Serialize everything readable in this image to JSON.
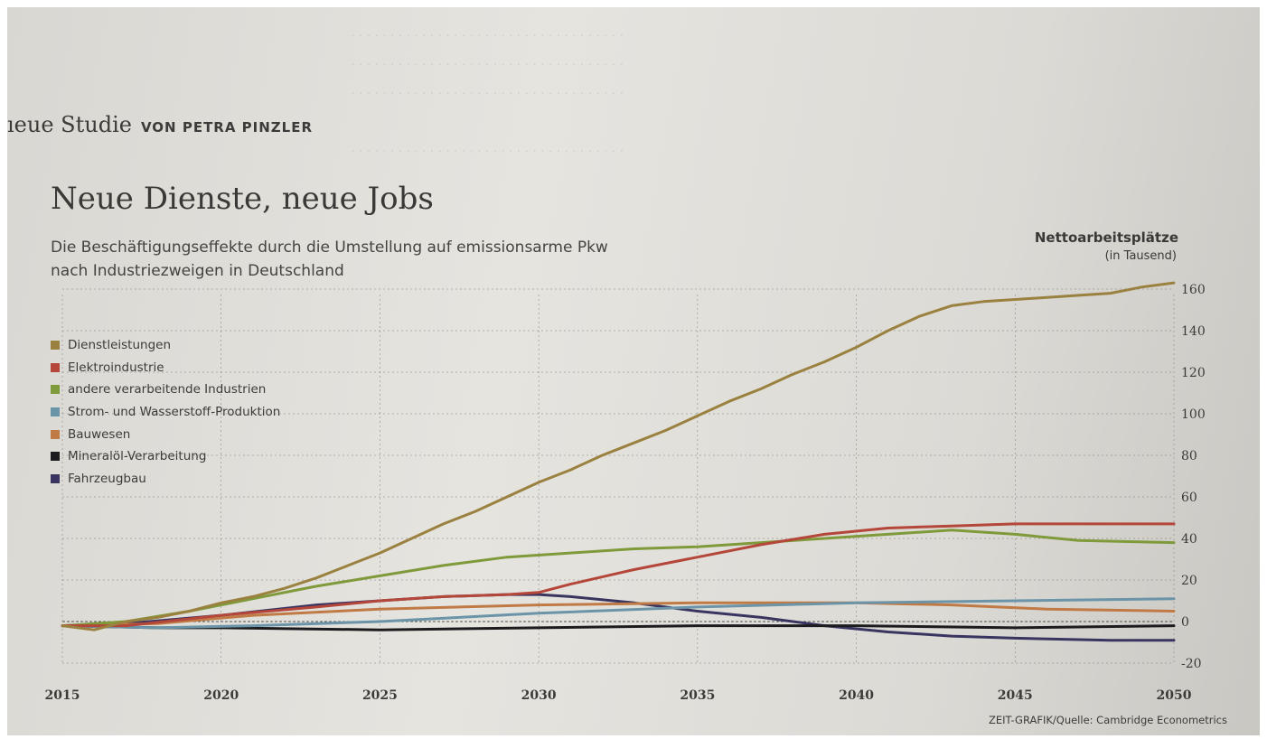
{
  "kicker": {
    "serif": "ıeue Studie",
    "author": "VON PETRA PINZLER"
  },
  "title": "Neue Dienste, neue Jobs",
  "subtitle": [
    "Die Beschäftigungseffekte durch die Umstellung auf emissionsarme Pkw",
    "nach Industriezweigen in Deutschland"
  ],
  "unit": {
    "title": "Nettoarbeitsplätze",
    "sub": "(in Tausend)"
  },
  "source": "ZEIT-GRAFIK/Quelle: Cambridge Econometrics",
  "colors": {
    "paper": "#e2e0db",
    "grid": "#7a7a78",
    "text": "#3d3b39"
  },
  "chart_data": {
    "type": "line",
    "title": "Neue Dienste, neue Jobs",
    "xlabel": "",
    "ylabel": "Nettoarbeitsplätze (in Tausend)",
    "xlim": [
      2015,
      2050
    ],
    "ylim": [
      -20,
      160
    ],
    "x_ticks": [
      2015,
      2020,
      2025,
      2030,
      2035,
      2040,
      2045,
      2050
    ],
    "y_ticks": [
      -20,
      0,
      20,
      40,
      60,
      80,
      100,
      120,
      140,
      160
    ],
    "grid": true,
    "legend": "left",
    "series": [
      {
        "name": "Dienstleistungen",
        "color": "#9a8140",
        "x": [
          2015,
          2016,
          2017,
          2018,
          2019,
          2020,
          2021,
          2022,
          2023,
          2024,
          2025,
          2026,
          2027,
          2028,
          2029,
          2030,
          2031,
          2032,
          2033,
          2034,
          2035,
          2036,
          2037,
          2038,
          2039,
          2040,
          2041,
          2042,
          2043,
          2044,
          2045,
          2046,
          2047,
          2048,
          2049,
          2050
        ],
        "y": [
          -2,
          -4,
          0,
          2,
          5,
          9,
          12,
          16,
          21,
          27,
          33,
          40,
          47,
          53,
          60,
          67,
          73,
          80,
          86,
          92,
          99,
          106,
          112,
          119,
          125,
          132,
          140,
          147,
          152,
          154,
          155,
          156,
          157,
          158,
          161,
          163
        ]
      },
      {
        "name": "Elektroindustrie",
        "color": "#b4463a",
        "x": [
          2015,
          2017,
          2020,
          2023,
          2025,
          2027,
          2029,
          2030,
          2031,
          2033,
          2035,
          2037,
          2039,
          2041,
          2043,
          2045,
          2047,
          2050
        ],
        "y": [
          -2,
          -2,
          3,
          7,
          10,
          12,
          13,
          14,
          18,
          25,
          31,
          37,
          42,
          45,
          46,
          47,
          47,
          47
        ]
      },
      {
        "name": "andere verarbeitende Industrien",
        "color": "#7f9a3a",
        "x": [
          2015,
          2017,
          2019,
          2021,
          2023,
          2025,
          2027,
          2029,
          2031,
          2033,
          2035,
          2037,
          2039,
          2041,
          2043,
          2045,
          2047,
          2050
        ],
        "y": [
          -2,
          0,
          5,
          11,
          17,
          22,
          27,
          31,
          33,
          35,
          36,
          38,
          40,
          42,
          44,
          42,
          39,
          38
        ]
      },
      {
        "name": "Strom- und Wasserstoff-Produktion",
        "color": "#6b94a8",
        "x": [
          2015,
          2018,
          2021,
          2025,
          2030,
          2035,
          2040,
          2045,
          2050
        ],
        "y": [
          -2,
          -3,
          -2,
          0,
          4,
          7,
          9,
          10,
          11
        ]
      },
      {
        "name": "Bauwesen",
        "color": "#c07a45",
        "x": [
          2015,
          2018,
          2021,
          2025,
          2030,
          2035,
          2040,
          2043,
          2046,
          2050
        ],
        "y": [
          -2,
          -1,
          3,
          6,
          8,
          9,
          9,
          8,
          6,
          5
        ]
      },
      {
        "name": "Mineralöl-Verarbeitung",
        "color": "#1c1c1f",
        "x": [
          2015,
          2018,
          2020,
          2025,
          2030,
          2035,
          2040,
          2045,
          2050
        ],
        "y": [
          -2,
          -3,
          -3,
          -4,
          -3,
          -2,
          -2,
          -3,
          -2
        ]
      },
      {
        "name": "Fahrzeugbau",
        "color": "#3a3560",
        "x": [
          2015,
          2017,
          2020,
          2023,
          2025,
          2027,
          2029,
          2030,
          2031,
          2033,
          2035,
          2037,
          2039,
          2041,
          2043,
          2045,
          2048,
          2050
        ],
        "y": [
          -2,
          -1,
          3,
          8,
          10,
          12,
          13,
          13,
          12,
          9,
          5,
          2,
          -2,
          -5,
          -7,
          -8,
          -9,
          -9
        ]
      }
    ]
  }
}
